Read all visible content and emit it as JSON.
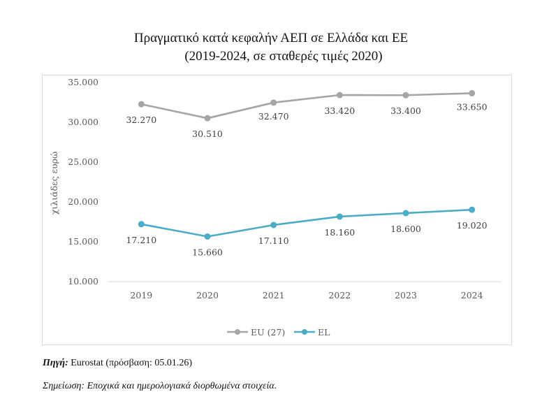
{
  "chart_data": {
    "type": "line",
    "title": "Πραγματικό κατά κεφαλήν ΑΕΠ σε Ελλάδα και ΕΕ",
    "subtitle": "(2019-2024, σε σταθερές τιμές 2020)",
    "xlabel": "",
    "ylabel": "χιλιάδες ευρώ",
    "categories": [
      "2019",
      "2020",
      "2021",
      "2022",
      "2023",
      "2024"
    ],
    "ylim": [
      10000,
      35000
    ],
    "yticks": [
      10000,
      15000,
      20000,
      25000,
      30000,
      35000
    ],
    "ytick_labels": [
      "10.000",
      "15.000",
      "20.000",
      "25.000",
      "30.000",
      "35.000"
    ],
    "grid": false,
    "legend_position": "bottom",
    "series": [
      {
        "name": "EU (27)",
        "color": "#a5a5a5",
        "values": [
          32270,
          30510,
          32470,
          33420,
          33400,
          33650
        ],
        "labels": [
          "32.270",
          "30.510",
          "32.470",
          "33.420",
          "33.400",
          "33.650"
        ]
      },
      {
        "name": "EL",
        "color": "#4bacc6",
        "values": [
          17210,
          15660,
          17110,
          18160,
          18600,
          19020
        ],
        "labels": [
          "17.210",
          "15.660",
          "17.110",
          "18.160",
          "18.600",
          "19.020"
        ]
      }
    ]
  },
  "footer": {
    "source_label": "Πηγή:",
    "source_text": " Eurostat (πρόσβαση: 05.01.26)",
    "note": "Σημείωση: Εποχικά και ημερολογιακά διορθωμένα στοιχεία."
  }
}
